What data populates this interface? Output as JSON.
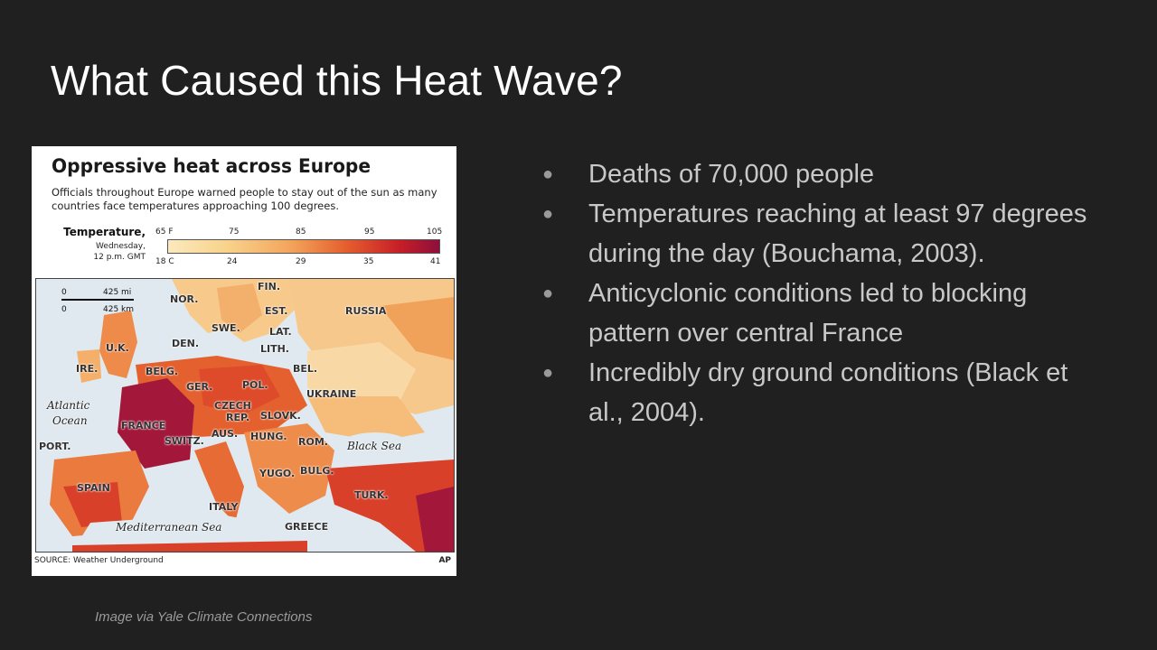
{
  "slide": {
    "title": "What Caused this Heat Wave?",
    "caption": "Image via Yale Climate Connections",
    "bullets": [
      "Deaths of 70,000 people",
      "Temperatures reaching at least 97 degrees during the day (Bouchama, 2003).",
      "Anticyclonic conditions led to blocking pattern over central France",
      "Incredibly dry ground conditions (Black et al., 2004)."
    ],
    "bullet_glyph": "●"
  },
  "map": {
    "title": "Oppressive heat across Europe",
    "description": "Officials throughout Europe warned people to stay out of the sun as many countries face temperatures approaching 100 degrees.",
    "legend": {
      "label": "Temperature,",
      "day": "Wednesday,",
      "time": "12 p.m. GMT",
      "fahrenheit": [
        "65 F",
        "75",
        "85",
        "95",
        "105"
      ],
      "celsius": [
        "18 C",
        "24",
        "29",
        "35",
        "41"
      ]
    },
    "scale": {
      "mi": "425 mi",
      "km": "425 km",
      "zero": "0"
    },
    "labels": {
      "fin": "FIN.",
      "nor": "NOR.",
      "est": "EST.",
      "russia": "RUSSIA",
      "swe": "SWE.",
      "lat": "LAT.",
      "den": "DEN.",
      "lith": "LITH.",
      "uk": "U.K.",
      "ire": "IRE.",
      "belg": "BELG.",
      "bel": "BEL.",
      "ger": "GER.",
      "pol": "POL.",
      "ukraine": "UKRAINE",
      "atlantic": "Atlantic",
      "ocean": "Ocean",
      "czech": "CZECH",
      "rep": "REP.",
      "slovk": "SLOVK.",
      "france": "FRANCE",
      "switz": "SWITZ.",
      "aus": "AUS.",
      "hung": "HUNG.",
      "rom": "ROM.",
      "black_sea": "Black Sea",
      "port": "PORT.",
      "yugo": "YUGO.",
      "bulg": "BULG.",
      "spain": "SPAIN",
      "turk": "TURK.",
      "italy": "ITALY",
      "greece": "GREECE",
      "med": "Mediterranean Sea"
    },
    "source": "SOURCE: Weather Underground",
    "agency": "AP"
  }
}
